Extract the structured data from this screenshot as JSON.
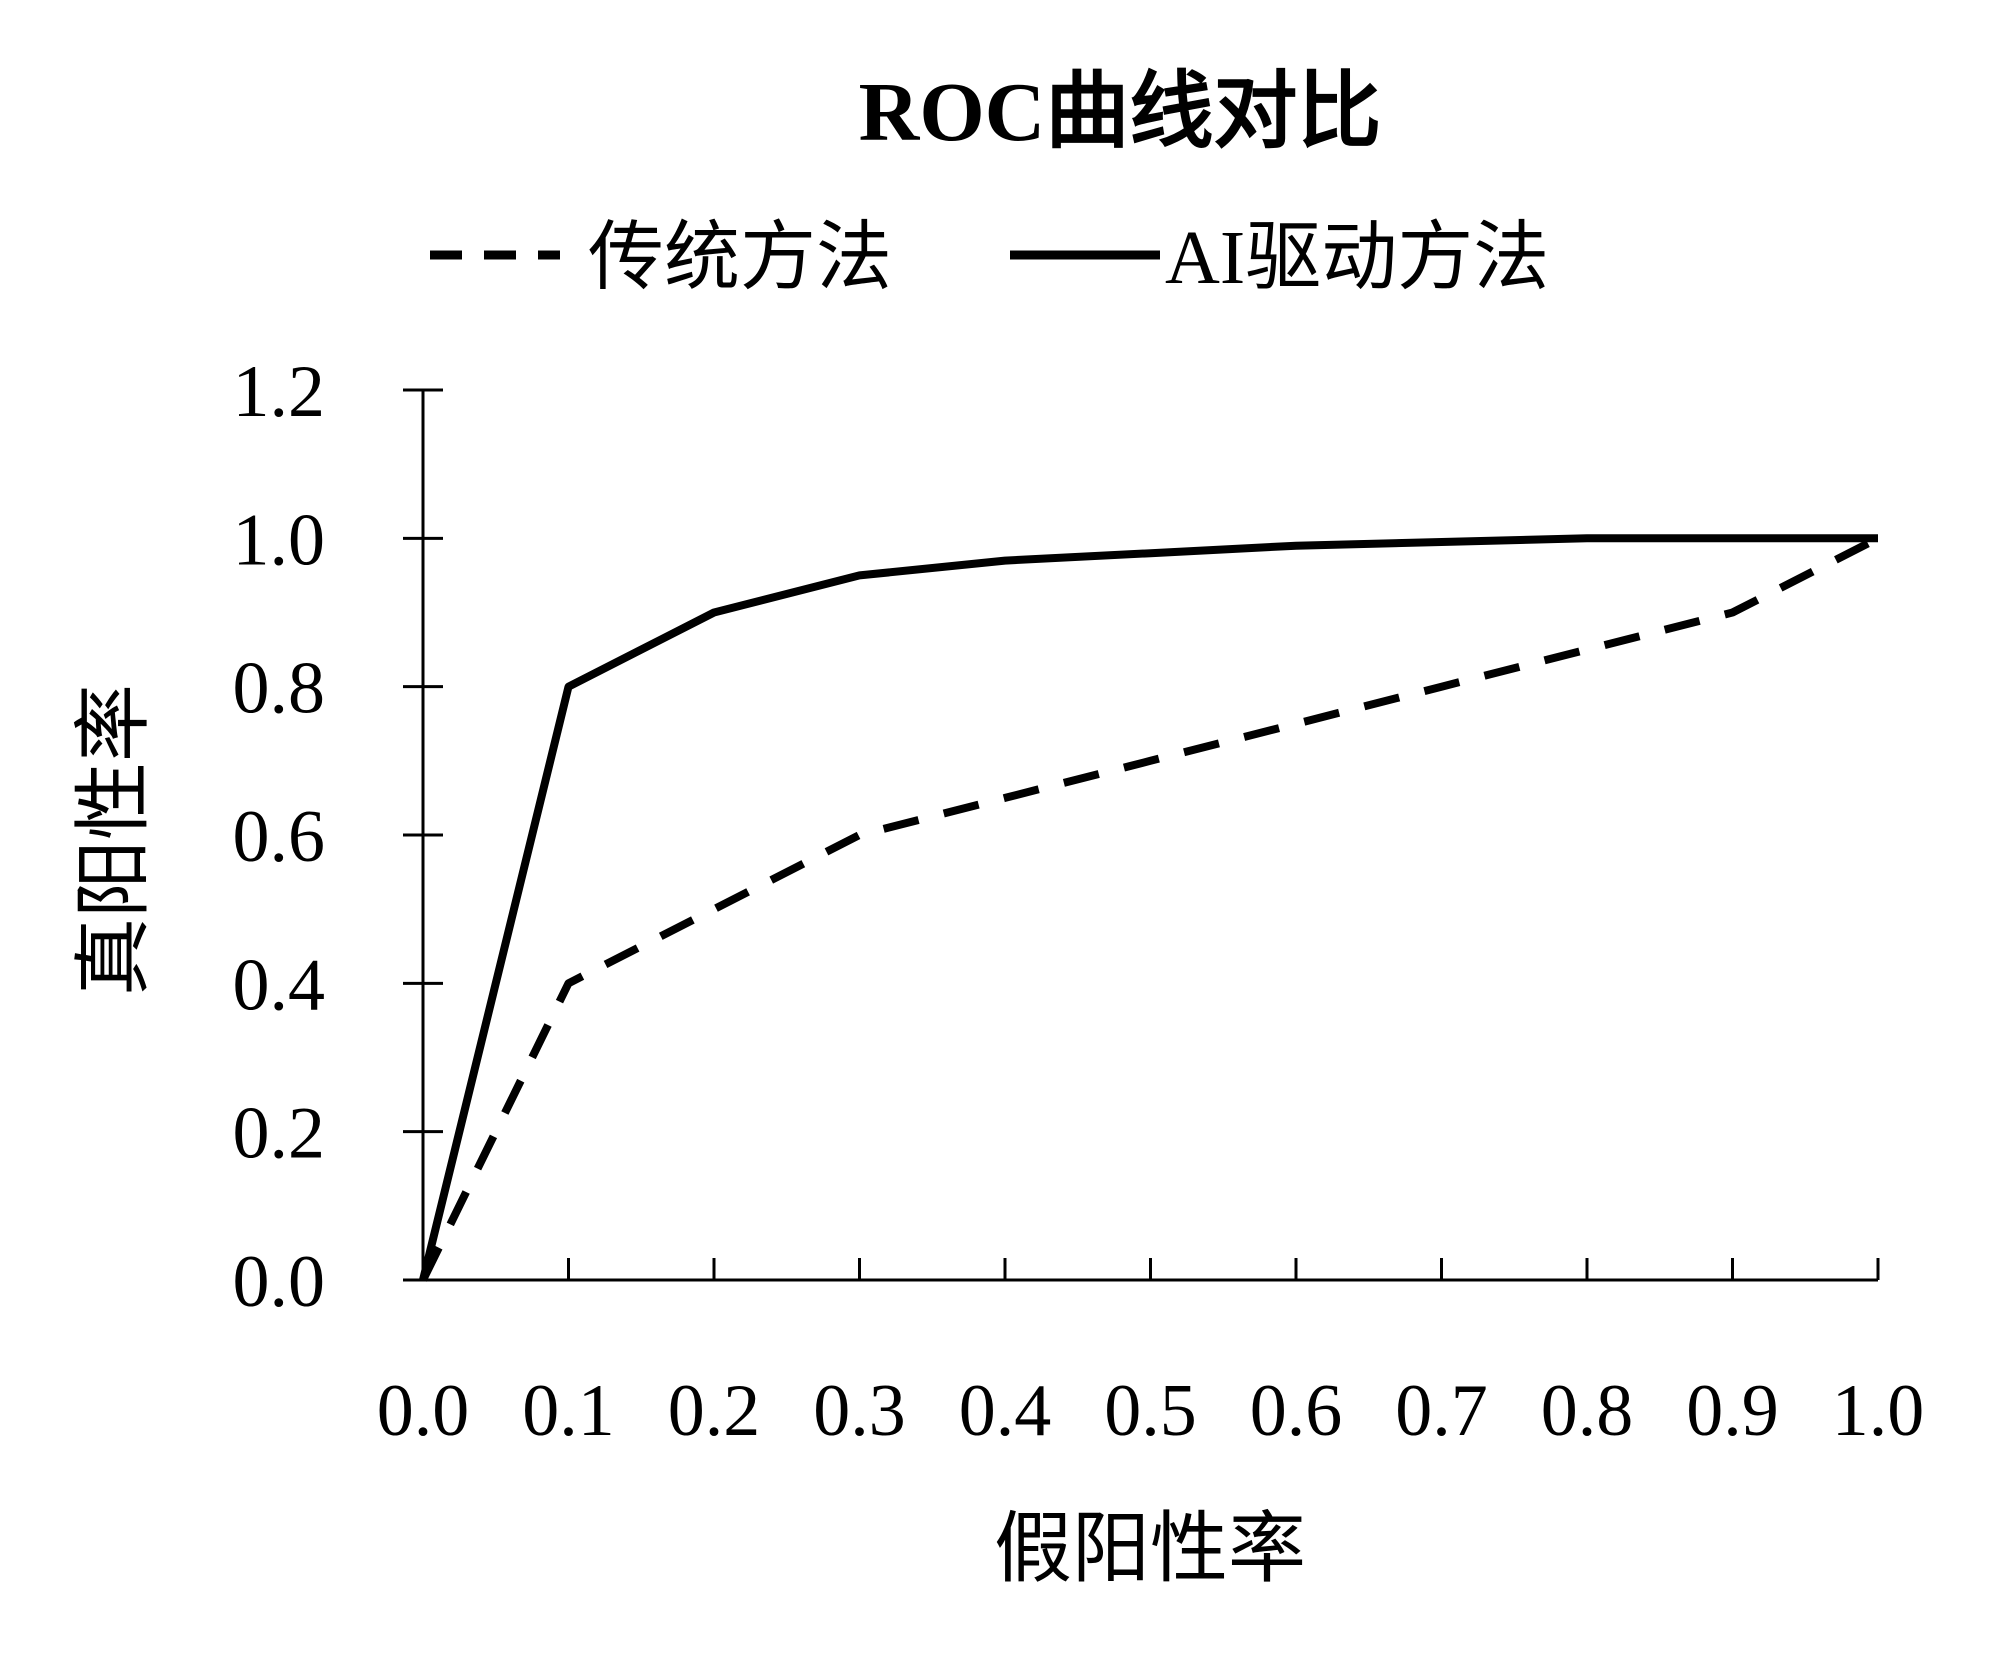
{
  "chart_data": {
    "type": "line",
    "title": "ROC曲线对比",
    "xlabel": "假阳性率",
    "ylabel": "真阳性率",
    "xlim": [
      0.0,
      1.0
    ],
    "ylim": [
      0.0,
      1.2
    ],
    "x_ticks": [
      "0.0",
      "0.1",
      "0.2",
      "0.3",
      "0.4",
      "0.5",
      "0.6",
      "0.7",
      "0.8",
      "0.9",
      "1.0"
    ],
    "y_ticks": [
      "0.0",
      "0.2",
      "0.4",
      "0.6",
      "0.8",
      "1.0",
      "1.2"
    ],
    "legend_position": "top",
    "grid": false,
    "series": [
      {
        "name": "传统方法",
        "line_style": "dashed",
        "color": "#000000",
        "x": [
          0.0,
          0.1,
          0.2,
          0.3,
          0.4,
          0.5,
          0.6,
          0.7,
          0.8,
          0.9,
          1.0
        ],
        "y": [
          0.0,
          0.4,
          0.5,
          0.6,
          0.65,
          0.7,
          0.75,
          0.8,
          0.85,
          0.9,
          1.0
        ]
      },
      {
        "name": "AI驱动方法",
        "line_style": "solid",
        "color": "#000000",
        "x": [
          0.0,
          0.1,
          0.2,
          0.3,
          0.4,
          0.5,
          0.6,
          0.7,
          0.8,
          0.9,
          1.0
        ],
        "y": [
          0.0,
          0.8,
          0.9,
          0.95,
          0.97,
          0.98,
          0.99,
          0.995,
          1.0,
          1.0,
          1.0
        ]
      }
    ]
  }
}
